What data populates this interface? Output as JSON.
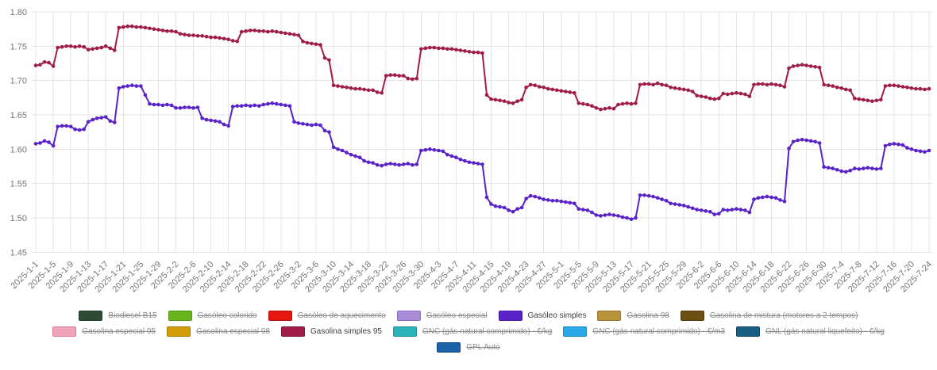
{
  "chart_data": {
    "type": "line",
    "title": "",
    "xlabel": "",
    "ylabel": "",
    "x_start": "2025-1-1",
    "x_end": "2025-7-24",
    "x_frequency": "daily",
    "x_tick_every": 4,
    "x_tick_labels": [
      "2025-1-1",
      "2025-1-5",
      "2025-1-9",
      "2025-1-13",
      "2025-1-17",
      "2025-1-21",
      "2025-1-25",
      "2025-1-29",
      "2025-2-2",
      "2025-2-6",
      "2025-2-10",
      "2025-2-14",
      "2025-2-18",
      "2025-2-22",
      "2025-2-26",
      "2025-3-2",
      "2025-3-6",
      "2025-3-10",
      "2025-3-14",
      "2025-3-18",
      "2025-3-22",
      "2025-3-26",
      "2025-3-30",
      "2025-4-3",
      "2025-4-7",
      "2025-4-11",
      "2025-4-15",
      "2025-4-19",
      "2025-4-23",
      "2025-4-27",
      "2025-5-1",
      "2025-5-5",
      "2025-5-9",
      "2025-5-13",
      "2025-5-17",
      "2025-5-21",
      "2025-5-25",
      "2025-5-29",
      "2025-6-2",
      "2025-6-6",
      "2025-6-10",
      "2025-6-14",
      "2025-6-18",
      "2025-6-22",
      "2025-6-26",
      "2025-6-30",
      "2025-7-4",
      "2025-7-8",
      "2025-7-12",
      "2025-7-16",
      "2025-7-20",
      "2025-7-24"
    ],
    "y_tick_labels": [
      "1.80",
      "1.75",
      "1.70",
      "1.65",
      "1.60",
      "1.55",
      "1.50",
      "1.45"
    ],
    "ylim": [
      1.45,
      1.8
    ],
    "y_tick_step": 0.05,
    "grid": true,
    "legend_position": "bottom",
    "series": [
      {
        "name": "Gasóleo simples",
        "color": "#5a23c9",
        "values": [
          1.608,
          1.609,
          1.612,
          1.61,
          1.605,
          1.633,
          1.634,
          1.634,
          1.633,
          1.629,
          1.628,
          1.629,
          1.64,
          1.643,
          1.645,
          1.646,
          1.647,
          1.641,
          1.639,
          1.689,
          1.691,
          1.692,
          1.693,
          1.692,
          1.692,
          1.679,
          1.666,
          1.665,
          1.665,
          1.664,
          1.665,
          1.664,
          1.66,
          1.66,
          1.661,
          1.661,
          1.66,
          1.661,
          1.645,
          1.643,
          1.642,
          1.641,
          1.64,
          1.636,
          1.634,
          1.662,
          1.663,
          1.663,
          1.664,
          1.663,
          1.664,
          1.663,
          1.665,
          1.666,
          1.667,
          1.666,
          1.665,
          1.664,
          1.663,
          1.64,
          1.638,
          1.637,
          1.636,
          1.635,
          1.636,
          1.635,
          1.627,
          1.625,
          1.603,
          1.6,
          1.598,
          1.595,
          1.592,
          1.59,
          1.588,
          1.583,
          1.581,
          1.58,
          1.577,
          1.576,
          1.578,
          1.579,
          1.578,
          1.577,
          1.578,
          1.579,
          1.577,
          1.578,
          1.598,
          1.599,
          1.6,
          1.599,
          1.598,
          1.597,
          1.592,
          1.59,
          1.588,
          1.585,
          1.583,
          1.581,
          1.58,
          1.579,
          1.578,
          1.53,
          1.52,
          1.517,
          1.516,
          1.515,
          1.511,
          1.509,
          1.513,
          1.515,
          1.528,
          1.532,
          1.531,
          1.529,
          1.527,
          1.526,
          1.525,
          1.525,
          1.524,
          1.523,
          1.522,
          1.521,
          1.513,
          1.512,
          1.511,
          1.508,
          1.504,
          1.503,
          1.504,
          1.505,
          1.504,
          1.503,
          1.501,
          1.5,
          1.498,
          1.5,
          1.533,
          1.533,
          1.532,
          1.531,
          1.529,
          1.527,
          1.525,
          1.521,
          1.52,
          1.519,
          1.518,
          1.516,
          1.514,
          1.512,
          1.511,
          1.51,
          1.509,
          1.505,
          1.506,
          1.512,
          1.511,
          1.512,
          1.513,
          1.512,
          1.511,
          1.508,
          1.527,
          1.529,
          1.53,
          1.531,
          1.53,
          1.529,
          1.526,
          1.524,
          1.601,
          1.611,
          1.613,
          1.614,
          1.613,
          1.612,
          1.611,
          1.609,
          1.574,
          1.573,
          1.572,
          1.57,
          1.568,
          1.567,
          1.569,
          1.572,
          1.571,
          1.572,
          1.573,
          1.572,
          1.571,
          1.572,
          1.605,
          1.607,
          1.608,
          1.607,
          1.606,
          1.602,
          1.6,
          1.598,
          1.597,
          1.596,
          1.598
        ]
      },
      {
        "name": "Gasolina simples 95",
        "color": "#a01d4a",
        "values": [
          1.722,
          1.723,
          1.727,
          1.726,
          1.721,
          1.748,
          1.749,
          1.75,
          1.75,
          1.749,
          1.75,
          1.749,
          1.745,
          1.746,
          1.747,
          1.748,
          1.75,
          1.747,
          1.744,
          1.777,
          1.778,
          1.779,
          1.779,
          1.778,
          1.778,
          1.777,
          1.776,
          1.775,
          1.774,
          1.773,
          1.772,
          1.772,
          1.771,
          1.768,
          1.767,
          1.766,
          1.766,
          1.765,
          1.765,
          1.764,
          1.763,
          1.763,
          1.762,
          1.761,
          1.76,
          1.758,
          1.757,
          1.771,
          1.772,
          1.773,
          1.773,
          1.772,
          1.772,
          1.771,
          1.772,
          1.771,
          1.77,
          1.769,
          1.768,
          1.767,
          1.766,
          1.757,
          1.755,
          1.754,
          1.753,
          1.752,
          1.733,
          1.73,
          1.693,
          1.692,
          1.691,
          1.69,
          1.689,
          1.688,
          1.688,
          1.687,
          1.686,
          1.686,
          1.683,
          1.682,
          1.707,
          1.708,
          1.708,
          1.707,
          1.707,
          1.703,
          1.702,
          1.703,
          1.746,
          1.747,
          1.748,
          1.748,
          1.747,
          1.747,
          1.746,
          1.746,
          1.745,
          1.744,
          1.743,
          1.742,
          1.741,
          1.741,
          1.74,
          1.679,
          1.673,
          1.672,
          1.671,
          1.67,
          1.668,
          1.667,
          1.67,
          1.672,
          1.69,
          1.694,
          1.693,
          1.691,
          1.69,
          1.688,
          1.687,
          1.686,
          1.685,
          1.684,
          1.683,
          1.682,
          1.667,
          1.666,
          1.665,
          1.663,
          1.66,
          1.658,
          1.659,
          1.66,
          1.659,
          1.665,
          1.666,
          1.667,
          1.666,
          1.667,
          1.694,
          1.695,
          1.695,
          1.694,
          1.696,
          1.694,
          1.693,
          1.69,
          1.689,
          1.688,
          1.687,
          1.686,
          1.684,
          1.678,
          1.677,
          1.676,
          1.674,
          1.673,
          1.674,
          1.681,
          1.68,
          1.681,
          1.682,
          1.681,
          1.68,
          1.677,
          1.694,
          1.695,
          1.695,
          1.694,
          1.695,
          1.694,
          1.693,
          1.691,
          1.718,
          1.721,
          1.722,
          1.723,
          1.722,
          1.721,
          1.72,
          1.719,
          1.694,
          1.693,
          1.692,
          1.69,
          1.689,
          1.687,
          1.686,
          1.674,
          1.673,
          1.672,
          1.671,
          1.67,
          1.671,
          1.672,
          1.692,
          1.693,
          1.693,
          1.692,
          1.691,
          1.69,
          1.689,
          1.688,
          1.688,
          1.687,
          1.688
        ]
      }
    ]
  },
  "style": {
    "grid_color": "#e6e6e6",
    "tick_label_color": "#757575",
    "background": "#ffffff",
    "marker_radius": 2.3,
    "line_width": 2
  },
  "legend": {
    "rows": [
      [
        {
          "id": "biodiesel-b15",
          "label": "Biodiesel B15",
          "color": "#2e4b34",
          "border": "#1f3a27",
          "active": false
        },
        {
          "id": "gasoleo-colorido",
          "label": "Gasóleo colorido",
          "color": "#68b41e",
          "border": "#539311",
          "active": false
        },
        {
          "id": "gasoleo-de-aquecimento",
          "label": "Gasóleo de aquecimento",
          "color": "#e3170f",
          "border": "#b50f07",
          "active": false
        },
        {
          "id": "gasoleo-especial",
          "label": "Gasóleo especial",
          "color": "#a98dd8",
          "border": "#8a6cc4",
          "active": false
        },
        {
          "id": "gasoleo-simples",
          "label": "Gasóleo simples",
          "color": "#5a23c9",
          "border": "#47189e",
          "active": true
        },
        {
          "id": "gasolina-98",
          "label": "Gasolina 98",
          "color": "#b9933c",
          "border": "#97762b",
          "active": false
        },
        {
          "id": "gasolina-de-mistura",
          "label": "Gasolina de mistura (motores a 2 tempos)",
          "color": "#6b4f10",
          "border": "#533c0a",
          "active": false
        }
      ],
      [
        {
          "id": "gasolina-especial-95",
          "label": "Gasolina especial 95",
          "color": "#efa3b8",
          "border": "#db7f9c",
          "active": false
        },
        {
          "id": "gasolina-especial-98",
          "label": "Gasolina especial 98",
          "color": "#d19d0b",
          "border": "#ab7f06",
          "active": false
        },
        {
          "id": "gasolina-simples-95",
          "label": "Gasolina simples 95",
          "color": "#a01d4a",
          "border": "#801338",
          "active": true
        },
        {
          "id": "gnc-eur-kg",
          "label": "GNC (gás natural comprimido) - €/kg",
          "color": "#2ab3bb",
          "border": "#1f9198",
          "active": false
        },
        {
          "id": "gnc-eur-m3",
          "label": "GNC (gás natural comprimido) - €/m3",
          "color": "#2aa9e9",
          "border": "#1b87c2",
          "active": false
        },
        {
          "id": "gnl-eur-kg",
          "label": "GNL (gás natural liquefeito) - €/kg",
          "color": "#175e82",
          "border": "#0f4560",
          "active": false
        }
      ],
      [
        {
          "id": "gpl-auto",
          "label": "GPL Auto",
          "color": "#1b62a8",
          "border": "#124a83",
          "active": false
        }
      ]
    ]
  }
}
